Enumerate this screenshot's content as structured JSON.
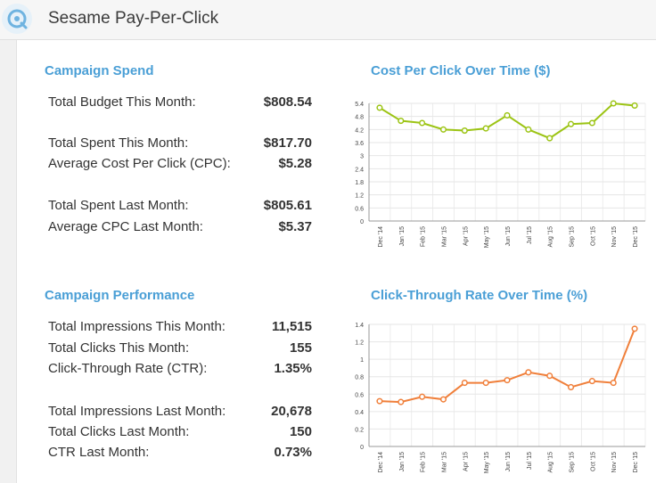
{
  "app": {
    "title": "Sesame Pay-Per-Click"
  },
  "spend": {
    "title": "Campaign Spend",
    "rows": [
      {
        "label": "Total Budget This Month:",
        "value": "$808.54"
      },
      {
        "label": "Total Spent This Month:",
        "value": "$817.70"
      },
      {
        "label": "Average Cost Per Click (CPC):",
        "value": "$5.28"
      },
      {
        "label": "Total Spent Last Month:",
        "value": "$805.61"
      },
      {
        "label": "Average CPC Last Month:",
        "value": "$5.37"
      }
    ]
  },
  "performance": {
    "title": "Campaign Performance",
    "rows": [
      {
        "label": "Total Impressions This Month:",
        "value": "11,515"
      },
      {
        "label": "Total Clicks This Month:",
        "value": "155"
      },
      {
        "label": "Click-Through Rate (CTR):",
        "value": "1.35%"
      },
      {
        "label": "Total Impressions Last Month:",
        "value": "20,678"
      },
      {
        "label": "Total Clicks Last Month:",
        "value": "150"
      },
      {
        "label": "CTR Last Month:",
        "value": "0.73%"
      }
    ]
  },
  "chart_data": [
    {
      "type": "line",
      "title": "Cost Per Click Over Time ($)",
      "categories": [
        "Dec '14",
        "Jan '15",
        "Feb '15",
        "Mar '15",
        "Apr '15",
        "May '15",
        "Jun '15",
        "Jul '15",
        "Aug '15",
        "Sep '15",
        "Oct '15",
        "Nov '15",
        "Dec '15"
      ],
      "yticks": [
        "0",
        "0.6",
        "1.2",
        "1.8",
        "2.4",
        "3",
        "3.6",
        "4.2",
        "4.8",
        "5.4"
      ],
      "ylim": [
        0,
        5.4
      ],
      "series": [
        {
          "values": [
            5.2,
            4.6,
            4.5,
            4.2,
            4.15,
            4.25,
            4.85,
            4.2,
            3.8,
            4.45,
            4.5,
            5.4,
            5.3
          ]
        }
      ],
      "color": "#9cc414",
      "grid": true
    },
    {
      "type": "line",
      "title": "Click-Through Rate Over Time (%)",
      "categories": [
        "Dec '14",
        "Jan '15",
        "Feb '15",
        "Mar '15",
        "Apr '15",
        "May '15",
        "Jun '15",
        "Jul '15",
        "Aug '15",
        "Sep '15",
        "Oct '15",
        "Nov '15",
        "Dec '15"
      ],
      "yticks": [
        "0",
        "0.2",
        "0.4",
        "0.6",
        "0.8",
        "1",
        "1.2",
        "1.4"
      ],
      "ylim": [
        0,
        1.4
      ],
      "series": [
        {
          "values": [
            0.52,
            0.51,
            0.57,
            0.54,
            0.73,
            0.73,
            0.76,
            0.85,
            0.81,
            0.68,
            0.75,
            0.73,
            1.35
          ]
        }
      ],
      "color": "#f07f3a",
      "grid": true
    }
  ]
}
